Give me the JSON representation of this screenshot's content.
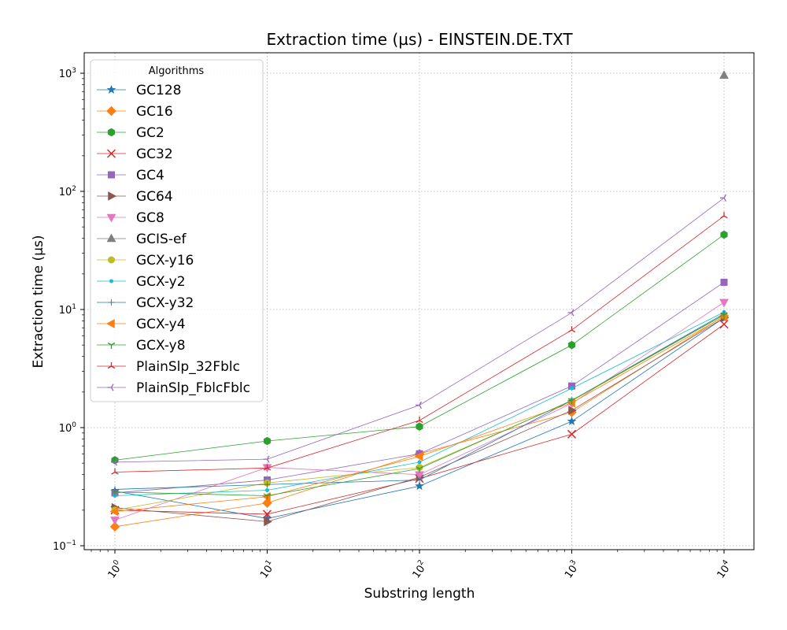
{
  "chart_data": {
    "type": "line",
    "title": "Extraction time (µs) - EINSTEIN.DE.TXT",
    "xlabel": "Substring length",
    "ylabel": "Extraction time (µs)",
    "xscale": "log",
    "yscale": "log",
    "grid": true,
    "legend_title": "Algorithms",
    "legend_position": "top-left",
    "x": [
      1,
      10,
      100,
      1000,
      10000
    ],
    "x_ticks": [
      {
        "base": "10",
        "exp": "0"
      },
      {
        "base": "10",
        "exp": "1"
      },
      {
        "base": "10",
        "exp": "2"
      },
      {
        "base": "10",
        "exp": "3"
      },
      {
        "base": "10",
        "exp": "4"
      }
    ],
    "y_ticks": [
      {
        "base": "10",
        "exp": "−1"
      },
      {
        "base": "10",
        "exp": "0"
      },
      {
        "base": "10",
        "exp": "1"
      },
      {
        "base": "10",
        "exp": "2"
      },
      {
        "base": "10",
        "exp": "3"
      }
    ],
    "series": [
      {
        "name": "GC128",
        "color": "#1f77b4",
        "marker": "star",
        "values": [
          0.29,
          0.17,
          0.32,
          1.13,
          8.5
        ]
      },
      {
        "name": "GC16",
        "color": "#ff7f0e",
        "marker": "diamond",
        "values": [
          0.145,
          0.23,
          0.6,
          1.35,
          8.8
        ]
      },
      {
        "name": "GC2",
        "color": "#2ca02c",
        "marker": "hexagon",
        "values": [
          0.53,
          0.77,
          1.02,
          5.0,
          43
        ]
      },
      {
        "name": "GC32",
        "color": "#d62728",
        "marker": "x",
        "values": [
          0.2,
          0.185,
          0.37,
          0.88,
          7.5
        ]
      },
      {
        "name": "GC4",
        "color": "#9467bd",
        "marker": "square",
        "values": [
          0.28,
          0.36,
          0.6,
          2.25,
          17
        ]
      },
      {
        "name": "GC64",
        "color": "#8c564b",
        "marker": "triangle-right",
        "values": [
          0.21,
          0.16,
          0.38,
          1.4,
          8.5
        ]
      },
      {
        "name": "GC8",
        "color": "#e377c2",
        "marker": "triangle-down",
        "values": [
          0.165,
          0.46,
          0.4,
          1.6,
          11.5
        ]
      },
      {
        "name": "GCIS-ef",
        "color": "#7f7f7f",
        "marker": "triangle-up",
        "values": [
          null,
          null,
          null,
          null,
          960
        ]
      },
      {
        "name": "GCX-y16",
        "color": "#bcbd22",
        "marker": "circle",
        "values": [
          0.2,
          0.34,
          0.46,
          1.68,
          9.0
        ]
      },
      {
        "name": "GCX-y2",
        "color": "#17becf",
        "marker": "point",
        "values": [
          0.265,
          0.295,
          0.51,
          2.15,
          9.5
        ]
      },
      {
        "name": "GCX-y32",
        "color": "#1f77b4",
        "marker": "tick",
        "values": [
          0.3,
          0.33,
          0.36,
          1.7,
          9.2
        ]
      },
      {
        "name": "GCX-y4",
        "color": "#ff7f0e",
        "marker": "triangle-left",
        "values": [
          0.195,
          0.26,
          0.57,
          1.62,
          8.7
        ]
      },
      {
        "name": "GCX-y8",
        "color": "#2ca02c",
        "marker": "tri-down",
        "values": [
          0.285,
          0.265,
          0.45,
          1.7,
          9.0
        ]
      },
      {
        "name": "PlainSlp_32Fblc",
        "color": "#d62728",
        "marker": "tri-up",
        "values": [
          0.42,
          0.455,
          1.15,
          6.7,
          62
        ]
      },
      {
        "name": "PlainSlp_FblcFblc",
        "color": "#9467bd",
        "marker": "tri-left",
        "values": [
          0.51,
          0.54,
          1.55,
          9.4,
          88
        ]
      }
    ]
  }
}
